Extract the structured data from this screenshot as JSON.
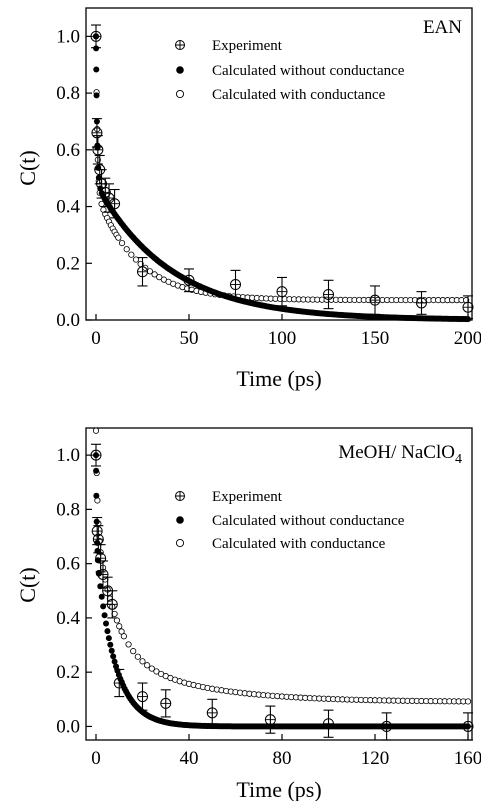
{
  "chart_data": [
    {
      "type": "scatter",
      "panel_label": "EAN",
      "xlabel": "Time (ps)",
      "ylabel": "C(t)",
      "xlim": [
        0,
        200
      ],
      "ylim": [
        0,
        1.1
      ],
      "xticks": [
        0,
        50,
        100,
        150,
        200
      ],
      "yticks": [
        0.0,
        0.2,
        0.4,
        0.6,
        0.8,
        1.0
      ],
      "legend_position": "top-right",
      "grid": false,
      "series": [
        {
          "name": "Experiment",
          "marker": "circle-cross",
          "x": [
            0,
            0.5,
            1,
            2,
            3,
            5,
            7,
            10,
            25,
            50,
            75,
            100,
            125,
            150,
            175,
            200
          ],
          "y": [
            1.0,
            0.66,
            0.6,
            0.53,
            0.48,
            0.45,
            0.43,
            0.41,
            0.17,
            0.14,
            0.125,
            0.1,
            0.09,
            0.07,
            0.06,
            0.045
          ],
          "error": [
            0.04,
            0.05,
            0.05,
            0.05,
            0.05,
            0.05,
            0.05,
            0.05,
            0.05,
            0.04,
            0.05,
            0.05,
            0.05,
            0.05,
            0.04,
            0.04
          ]
        },
        {
          "name": "Calculated without conductance",
          "marker": "filled-circle",
          "model": {
            "type": "exp2",
            "a1": 0.52,
            "t1": 0.6,
            "a2": 0.48,
            "t2": 40
          }
        },
        {
          "name": "Calculated with conductance",
          "marker": "open-circle",
          "model": {
            "type": "exp2c",
            "a1": 0.55,
            "t1": 0.7,
            "a2": 0.38,
            "t2": 22,
            "c": 0.07
          }
        }
      ]
    },
    {
      "type": "scatter",
      "panel_label": "MeOH/ NaClO4",
      "xlabel": "Time (ps)",
      "ylabel": "C(t)",
      "xlim": [
        0,
        160
      ],
      "ylim": [
        -0.05,
        1.1
      ],
      "xticks": [
        0,
        40,
        80,
        120,
        160
      ],
      "yticks": [
        0.0,
        0.2,
        0.4,
        0.6,
        0.8,
        1.0
      ],
      "legend_position": "top-right",
      "grid": false,
      "series": [
        {
          "name": "Experiment",
          "marker": "circle-cross",
          "x": [
            0,
            0.5,
            1,
            2,
            3,
            5,
            7,
            10,
            20,
            30,
            50,
            75,
            100,
            125,
            160
          ],
          "y": [
            1.0,
            0.72,
            0.69,
            0.62,
            0.56,
            0.5,
            0.45,
            0.16,
            0.11,
            0.085,
            0.05,
            0.025,
            0.01,
            0.0,
            0.0
          ],
          "error": [
            0.04,
            0.05,
            0.05,
            0.05,
            0.05,
            0.05,
            0.05,
            0.05,
            0.05,
            0.05,
            0.05,
            0.05,
            0.05,
            0.05,
            0.05
          ]
        },
        {
          "name": "Calculated without conductance",
          "marker": "filled-circle",
          "model": {
            "type": "exp2",
            "a1": 0.35,
            "t1": 0.3,
            "a2": 0.65,
            "t2": 8
          }
        },
        {
          "name": "Calculated with conductance",
          "marker": "open-circle",
          "model": {
            "type": "exp2c",
            "a1": 0.35,
            "t1": 0.6,
            "a2": 0.45,
            "t2": 8,
            "c": 0.2,
            "t3": 35,
            "c0": 0.09
          }
        }
      ]
    }
  ]
}
